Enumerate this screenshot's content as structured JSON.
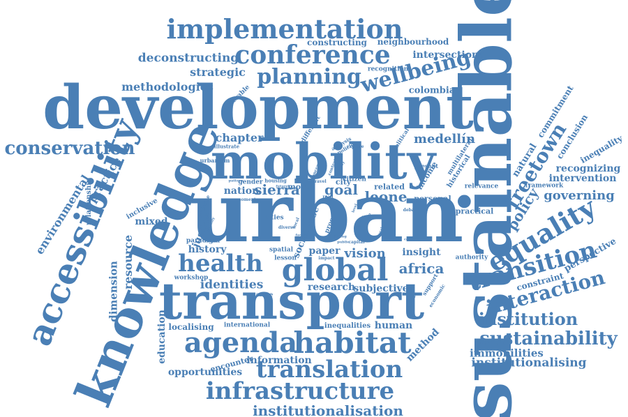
{
  "words": [
    {
      "id": "sustainable",
      "text": "sustainable"
    },
    {
      "id": "development",
      "text": "development"
    },
    {
      "id": "urban",
      "text": "urban"
    },
    {
      "id": "transport",
      "text": "transport"
    },
    {
      "id": "mobility",
      "text": "mobility"
    },
    {
      "id": "knowledge",
      "text": "knowledge"
    },
    {
      "id": "accessibility",
      "text": "accessibility"
    },
    {
      "id": "implementation",
      "text": "implementation"
    },
    {
      "id": "conference",
      "text": "conference"
    },
    {
      "id": "planning",
      "text": "planning"
    },
    {
      "id": "wellbeing",
      "text": "wellbeing"
    },
    {
      "id": "global",
      "text": "global"
    },
    {
      "id": "health",
      "text": "health"
    },
    {
      "id": "agenda",
      "text": "agenda"
    },
    {
      "id": "habitat",
      "text": "habitat"
    },
    {
      "id": "translation",
      "text": "translation"
    },
    {
      "id": "infrastructure",
      "text": "infrastructure"
    },
    {
      "id": "institutionalisation",
      "text": "institutionalisation"
    },
    {
      "id": "equality",
      "text": "equality"
    },
    {
      "id": "transition",
      "text": "transition"
    },
    {
      "id": "interaction",
      "text": "interaction"
    },
    {
      "id": "institution",
      "text": "institution"
    },
    {
      "id": "sustainability",
      "text": "sustainability"
    },
    {
      "id": "immobilities",
      "text": "immobilities"
    },
    {
      "id": "institutionalising",
      "text": "institutionalising"
    },
    {
      "id": "conservation",
      "text": "conservation"
    },
    {
      "id": "deconstructing",
      "text": "deconstructing"
    },
    {
      "id": "strategic",
      "text": "strategic"
    },
    {
      "id": "methodologies",
      "text": "methodologies"
    },
    {
      "id": "constructing",
      "text": "constructing"
    },
    {
      "id": "neighbourhood",
      "text": "neighbourhood"
    },
    {
      "id": "intersectional",
      "text": "intersectional"
    },
    {
      "id": "recognition",
      "text": "recognition"
    },
    {
      "id": "colombia",
      "text": "colombia"
    },
    {
      "id": "chapter",
      "text": "chapter"
    },
    {
      "id": "medellin",
      "text": "medellín"
    },
    {
      "id": "freetown",
      "text": "freetown"
    },
    {
      "id": "policy",
      "text": "policy"
    },
    {
      "id": "governing",
      "text": "governing"
    },
    {
      "id": "sierra",
      "text": "sierra"
    },
    {
      "id": "leone",
      "text": "leone"
    },
    {
      "id": "goal",
      "text": "goal"
    },
    {
      "id": "nation",
      "text": "nation"
    },
    {
      "id": "identities",
      "text": "identities"
    },
    {
      "id": "research",
      "text": "research"
    },
    {
      "id": "subjective",
      "text": "subjective"
    },
    {
      "id": "africa",
      "text": "africa"
    },
    {
      "id": "insight",
      "text": "insight"
    },
    {
      "id": "vision",
      "text": "vision"
    },
    {
      "id": "paper",
      "text": "paper"
    },
    {
      "id": "history",
      "text": "history"
    },
    {
      "id": "justice",
      "text": "justice"
    },
    {
      "id": "environmental",
      "text": "environmental"
    },
    {
      "id": "practice",
      "text": "practice"
    },
    {
      "id": "resource",
      "text": "resource"
    },
    {
      "id": "dimension",
      "text": "dimension"
    },
    {
      "id": "education",
      "text": "education"
    },
    {
      "id": "localising",
      "text": "localising"
    },
    {
      "id": "international",
      "text": "international"
    },
    {
      "id": "inequalities",
      "text": "inequalities"
    },
    {
      "id": "human",
      "text": "human"
    },
    {
      "id": "method",
      "text": "method"
    },
    {
      "id": "encounter",
      "text": "encounter"
    },
    {
      "id": "information",
      "text": "information"
    },
    {
      "id": "opportunities",
      "text": "opportunities"
    },
    {
      "id": "mixed",
      "text": "mixed"
    },
    {
      "id": "inclusive",
      "text": "inclusive"
    },
    {
      "id": "relationship",
      "text": "relationship"
    },
    {
      "id": "workshop",
      "text": "workshop"
    },
    {
      "id": "paradigm",
      "text": "paradigm"
    },
    {
      "id": "recognizing",
      "text": "recognizing"
    },
    {
      "id": "intervention",
      "text": "intervention"
    },
    {
      "id": "framework",
      "text": "framework"
    },
    {
      "id": "relevance",
      "text": "relevance"
    },
    {
      "id": "inequality",
      "text": "inequality"
    },
    {
      "id": "conclusion",
      "text": "conclusion"
    },
    {
      "id": "commitment",
      "text": "commitment"
    },
    {
      "id": "natural",
      "text": "natural"
    },
    {
      "id": "perspective",
      "text": "perspective"
    },
    {
      "id": "constraint",
      "text": "constraint"
    },
    {
      "id": "authority",
      "text": "authority"
    },
    {
      "id": "practical",
      "text": "practical"
    },
    {
      "id": "personal",
      "text": "personal"
    },
    {
      "id": "related",
      "text": "related"
    },
    {
      "id": "city",
      "text": "city"
    },
    {
      "id": "citizen",
      "text": "citizen"
    },
    {
      "id": "income",
      "text": "income"
    },
    {
      "id": "historical",
      "text": "historical"
    },
    {
      "id": "multilateral",
      "text": "multilateral"
    },
    {
      "id": "political",
      "text": "political"
    },
    {
      "id": "present",
      "text": "present"
    },
    {
      "id": "different",
      "text": "different"
    },
    {
      "id": "vulnerable",
      "text": "vulnerable"
    },
    {
      "id": "urbanism",
      "text": "urbanism"
    },
    {
      "id": "illustrate",
      "text": "illustrate"
    },
    {
      "id": "more",
      "text": "more"
    },
    {
      "id": "gender",
      "text": "gender"
    },
    {
      "id": "housing",
      "text": "housing"
    },
    {
      "id": "cities",
      "text": "cities"
    },
    {
      "id": "spatial",
      "text": "spatial"
    },
    {
      "id": "lesson",
      "text": "lesson"
    },
    {
      "id": "social",
      "text": "social"
    },
    {
      "id": "ease",
      "text": "ease"
    },
    {
      "id": "support",
      "text": "support"
    },
    {
      "id": "economic",
      "text": "economic"
    },
    {
      "id": "measure",
      "text": "measure"
    },
    {
      "id": "analysis",
      "text": "analysis"
    },
    {
      "id": "policies",
      "text": "policies"
    },
    {
      "id": "explore",
      "text": "explore"
    },
    {
      "id": "concern",
      "text": "concern"
    },
    {
      "id": "road",
      "text": "road"
    },
    {
      "id": "context",
      "text": "context"
    },
    {
      "id": "poverty",
      "text": "poverty"
    },
    {
      "id": "travel",
      "text": "travel"
    },
    {
      "id": "future",
      "text": "future"
    },
    {
      "id": "pattern",
      "text": "pattern"
    },
    {
      "id": "moment",
      "text": "moment"
    },
    {
      "id": "evidence",
      "text": "evidence"
    },
    {
      "id": "diverse",
      "text": "diverse"
    },
    {
      "id": "local",
      "text": "local"
    },
    {
      "id": "debate",
      "text": "debate"
    },
    {
      "id": "impact",
      "text": "impact"
    },
    {
      "id": "capital",
      "text": "capital"
    },
    {
      "id": "potential",
      "text": "potential"
    },
    {
      "id": "concept",
      "text": "concept"
    },
    {
      "id": "power",
      "text": "power"
    },
    {
      "id": "group",
      "text": "group"
    },
    {
      "id": "facing",
      "text": "facing"
    },
    {
      "id": "public",
      "text": "public"
    },
    {
      "id": "proc",
      "text": "proc"
    },
    {
      "id": "level",
      "text": "level"
    },
    {
      "id": "identify",
      "text": "identify"
    },
    {
      "id": "factor",
      "text": "factor"
    },
    {
      "id": "scale",
      "text": "scale"
    }
  ]
}
